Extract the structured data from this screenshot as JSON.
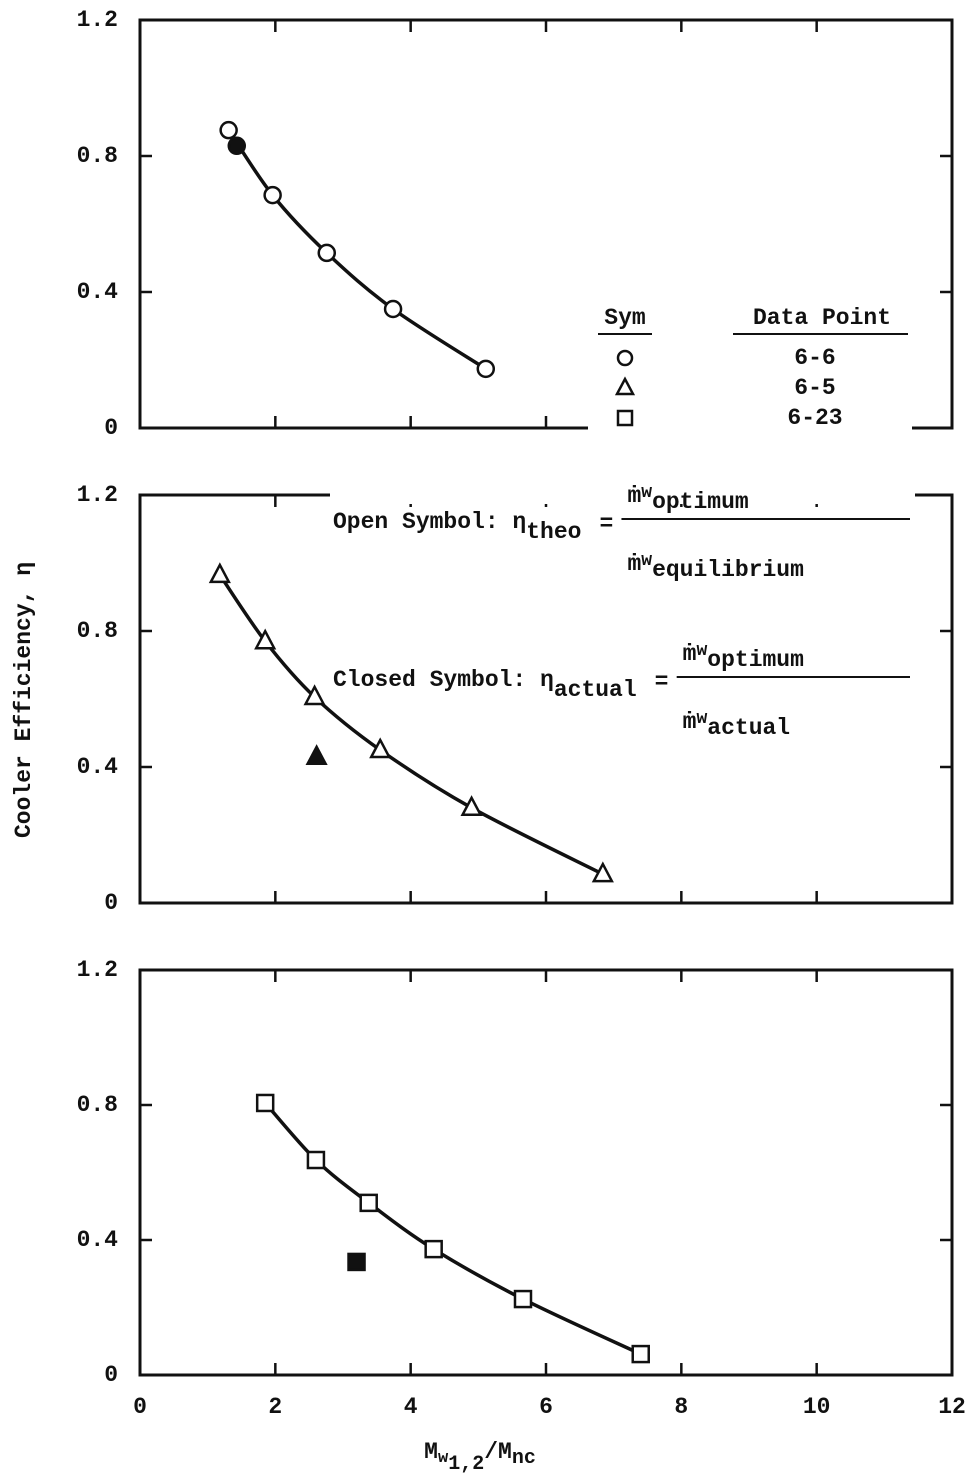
{
  "chart_data": [
    {
      "type": "scatter",
      "xlim": [
        0,
        12
      ],
      "xticks": [
        0,
        2,
        4,
        6,
        8,
        10,
        12
      ],
      "ylim": [
        0,
        1.2
      ],
      "yticks": [
        0,
        0.4,
        0.8,
        1.2
      ],
      "series": [
        {
          "name": "6-6",
          "marker": "circle",
          "color": "#111",
          "x": [
            1.31,
            1.96,
            2.76,
            3.74,
            5.11
          ],
          "values": [
            0.876,
            0.685,
            0.515,
            0.35,
            0.174
          ],
          "closed": {
            "x": 1.43,
            "value": 0.83
          }
        }
      ]
    },
    {
      "type": "scatter",
      "xlim": [
        0,
        12
      ],
      "xticks": [
        0,
        2,
        4,
        6,
        8,
        10,
        12
      ],
      "ylim": [
        0,
        1.2
      ],
      "yticks": [
        0,
        0.4,
        0.8,
        1.2
      ],
      "series": [
        {
          "name": "6-5",
          "marker": "triangle",
          "color": "#111",
          "x": [
            1.18,
            1.85,
            2.58,
            3.55,
            4.9,
            6.84
          ],
          "values": [
            0.965,
            0.77,
            0.606,
            0.45,
            0.28,
            0.085
          ],
          "closed": {
            "x": 2.61,
            "value": 0.43
          }
        }
      ]
    },
    {
      "type": "scatter",
      "xlim": [
        0,
        12
      ],
      "xticks": [
        0,
        2,
        4,
        6,
        8,
        10,
        12
      ],
      "ylim": [
        0,
        1.2
      ],
      "yticks": [
        0,
        0.4,
        0.8,
        1.2
      ],
      "series": [
        {
          "name": "6-23",
          "marker": "square",
          "color": "#111",
          "x": [
            1.85,
            2.6,
            3.38,
            4.34,
            5.66,
            7.4
          ],
          "values": [
            0.806,
            0.637,
            0.51,
            0.373,
            0.225,
            0.062
          ],
          "closed": {
            "x": 3.2,
            "value": 0.335
          }
        }
      ]
    }
  ],
  "ylabel": "Cooler Efficiency, η",
  "xlabel": {
    "main": "M",
    "sub": "w",
    "subsub": "1,2",
    "mid": "/M",
    "sub2": "nc"
  },
  "legend": {
    "sym": "Sym",
    "point": "Data Point"
  },
  "annotations": [
    {
      "label": "Open Symbol: η",
      "sub": "theo",
      "eq": "=",
      "num": "ṁ",
      "num_sub": "w",
      "num_subsub": "optimum",
      "den": "ṁ",
      "den_sub": "w",
      "den_subsub": "equilibrium"
    },
    {
      "label": "Closed Symbol: η",
      "sub": "actual",
      "eq": "=",
      "num": "ṁ",
      "num_sub": "w",
      "num_subsub": "optimum",
      "den": "ṁ",
      "den_sub": "w",
      "den_subsub": "actual"
    }
  ]
}
